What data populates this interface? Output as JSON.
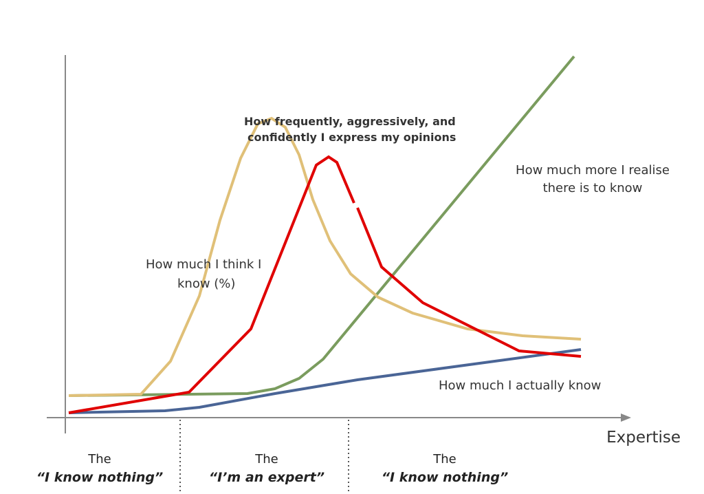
{
  "annotations": {
    "opinions": [
      "How frequently, aggressively, and",
      "confidently I express my opinions"
    ],
    "realise": [
      "How much more I realise",
      "there is to know"
    ],
    "think": [
      "How much I think I",
      "know (%)"
    ],
    "actually": "How much I actually know"
  },
  "x_axis_label": "Expertise",
  "stages": [
    {
      "prefix": "The",
      "name": "“I know nothing”"
    },
    {
      "prefix": "The",
      "name": "“I’m an expert”"
    },
    {
      "prefix": "The",
      "name": "“I know nothing”"
    }
  ]
}
